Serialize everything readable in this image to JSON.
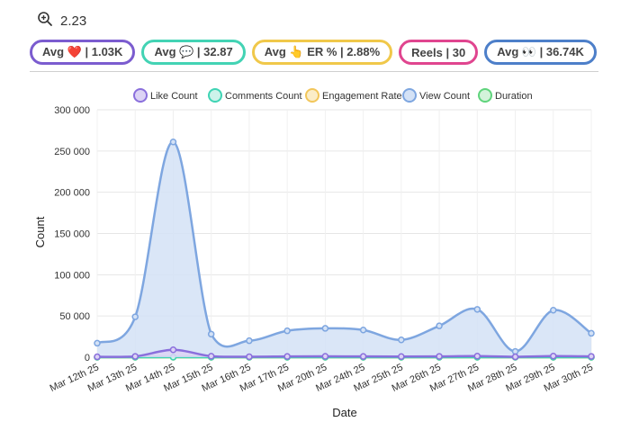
{
  "zoom": {
    "icon": "zoom-in-icon",
    "value": "2.23"
  },
  "stats": [
    {
      "label": "Avg ❤️ | 1.03K",
      "color": "#7b5ccf"
    },
    {
      "label": "Avg 💬 | 32.87",
      "color": "#43d3b4"
    },
    {
      "label": "Avg 👆 ER % | 2.88%",
      "color": "#f0c84a"
    },
    {
      "label": "Reels | 30",
      "color": "#e0458f"
    },
    {
      "label": "Avg 👀 | 36.74K",
      "color": "#4d7fc9"
    }
  ],
  "chart_data": {
    "type": "area",
    "xlabel": "Date",
    "ylabel": "Count",
    "ylim": [
      0,
      300000
    ],
    "yticks": [
      "0",
      "50 000",
      "100 000",
      "150 000",
      "200 000",
      "250 000",
      "300 000"
    ],
    "legend_position": "top-center",
    "grid": true,
    "categories": [
      "Mar 12th 25",
      "Mar 13th 25",
      "Mar 14th 25",
      "Mar 15th 25",
      "Mar 16th 25",
      "Mar 17th 25",
      "Mar 20th 25",
      "Mar 24th 25",
      "Mar 25th 25",
      "Mar 26th 25",
      "Mar 27th 25",
      "Mar 28th 25",
      "Mar 29th 25",
      "Mar 30th 25"
    ],
    "series": [
      {
        "name": "Like Count",
        "stroke": "#8a6fdc",
        "fill": "#dcd3f5",
        "values": [
          500,
          1000,
          9000,
          1200,
          600,
          900,
          1100,
          900,
          800,
          1000,
          1300,
          500,
          1400,
          1000
        ]
      },
      {
        "name": "Comments Count",
        "stroke": "#3fd4b4",
        "fill": "#cdf3ea",
        "values": [
          20,
          30,
          80,
          40,
          25,
          30,
          30,
          25,
          20,
          30,
          40,
          15,
          45,
          30
        ]
      },
      {
        "name": "Engagement Rate",
        "stroke": "#f2c65a",
        "fill": "#fbedc8",
        "values": [
          3,
          2.5,
          3.5,
          4,
          2,
          3,
          3,
          3,
          3,
          3,
          2.5,
          6,
          2.5,
          3
        ]
      },
      {
        "name": "View Count",
        "stroke": "#7ea6e0",
        "fill": "#d4e2f6",
        "values": [
          17000,
          49000,
          261000,
          28000,
          20000,
          32000,
          35000,
          33000,
          21000,
          38000,
          58000,
          7000,
          57000,
          29000
        ]
      },
      {
        "name": "Duration",
        "stroke": "#5fd47c",
        "fill": "#d3f3da",
        "values": [
          15,
          20,
          30,
          25,
          18,
          22,
          20,
          25,
          20,
          18,
          22,
          15,
          20,
          25
        ]
      }
    ]
  }
}
